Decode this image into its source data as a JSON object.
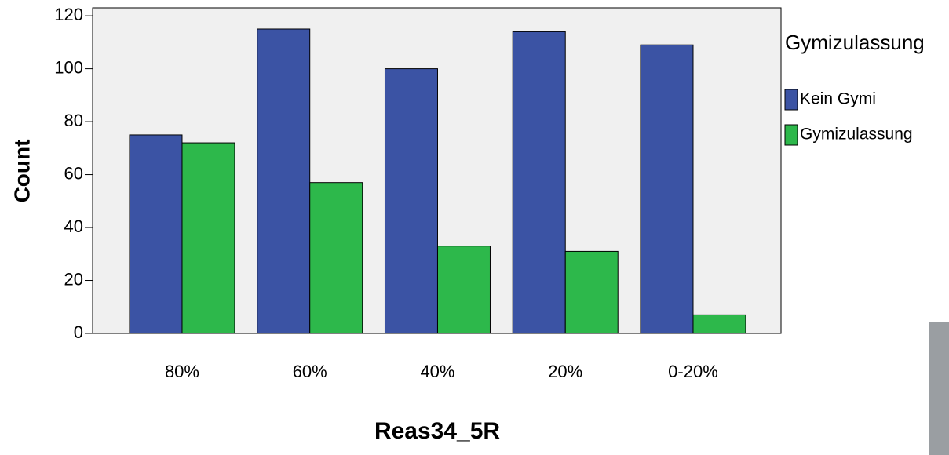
{
  "chart_data": {
    "type": "bar",
    "x_label": "Reas34_5R",
    "y_label": "Count",
    "categories": [
      "80%",
      "60%",
      "40%",
      "20%",
      "0-20%"
    ],
    "series": [
      {
        "name": "Kein Gymi",
        "color": "#3b53a4",
        "values": [
          75,
          115,
          100,
          114,
          109
        ]
      },
      {
        "name": "Gymizulassung",
        "color": "#2db84b",
        "values": [
          72,
          57,
          33,
          31,
          7
        ]
      }
    ],
    "legend_title": "Gymizulassung",
    "ylim": [
      0,
      123
    ],
    "yticks": [
      0,
      20,
      40,
      60,
      80,
      100,
      120
    ]
  }
}
